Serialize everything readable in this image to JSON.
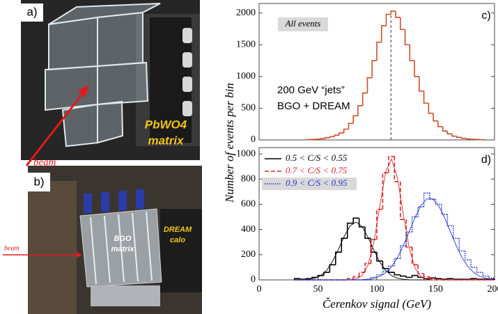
{
  "photos": {
    "a": {
      "label": "a)",
      "caption": [
        "PbWO4",
        "matrix"
      ],
      "beam": "beam"
    },
    "b": {
      "label": "b)",
      "beam": "beam",
      "bgo": [
        "BGO",
        "matrix"
      ],
      "dream": [
        "DREAM",
        "calo"
      ]
    }
  },
  "chart_data": [
    {
      "type": "histogram",
      "panel_label": "c)",
      "annotations": [
        "All events",
        "200 GeV “jets”",
        "BGO + DREAM"
      ],
      "bins": [
        40,
        44,
        48,
        52,
        56,
        60,
        64,
        68,
        72,
        76,
        80,
        84,
        88,
        92,
        96,
        100,
        104,
        108,
        112,
        116,
        120,
        124,
        128,
        132,
        136,
        140,
        144,
        148,
        152,
        156,
        160,
        164,
        168,
        172,
        176,
        180,
        184,
        188,
        192
      ],
      "values": [
        5,
        8,
        12,
        20,
        35,
        50,
        75,
        110,
        170,
        260,
        380,
        540,
        740,
        980,
        1250,
        1540,
        1800,
        1980,
        2030,
        1930,
        1740,
        1500,
        1250,
        1000,
        770,
        580,
        420,
        300,
        210,
        140,
        95,
        60,
        40,
        25,
        15,
        10,
        6,
        4
      ],
      "color": "#c8502a",
      "mean_line": 112,
      "xlim": [
        0,
        200
      ],
      "ylim": [
        0,
        2150
      ],
      "yticks": [
        0,
        500,
        1000,
        1500,
        2000
      ]
    },
    {
      "type": "histogram",
      "panel_label": "d)",
      "ylabel": "Number of events per bin",
      "xlabel": "Čerenkov signal (GeV)",
      "legend": "upper left",
      "bins": [
        30,
        35,
        40,
        45,
        50,
        55,
        60,
        65,
        70,
        75,
        80,
        85,
        90,
        95,
        100,
        105,
        110,
        115,
        120,
        125,
        130,
        135,
        140,
        145,
        150,
        155,
        160,
        165,
        170,
        175,
        180,
        185,
        190,
        195,
        200
      ],
      "series": [
        {
          "name": "0.5 < C/S < 0.55",
          "color": "#000000",
          "style": "solid",
          "values": [
            10,
            5,
            10,
            20,
            35,
            60,
            120,
            220,
            330,
            450,
            490,
            420,
            330,
            220,
            150,
            90,
            60,
            40,
            30,
            20,
            35,
            20,
            10,
            15,
            10,
            5,
            10,
            5,
            5,
            5,
            10,
            5,
            5,
            5
          ],
          "fit": [
            0,
            1,
            5,
            14,
            35,
            77,
            149,
            245,
            350,
            431,
            459,
            423,
            339,
            236,
            143,
            75,
            34,
            14,
            5,
            1,
            0,
            0,
            0,
            0,
            0,
            0,
            0,
            0,
            0,
            0,
            0,
            0,
            0,
            0
          ]
        },
        {
          "name": "0.7 < C/S < 0.75",
          "color": "#d62728",
          "style": "dashed",
          "values": [
            0,
            0,
            0,
            0,
            0,
            0,
            0,
            0,
            0,
            10,
            25,
            60,
            130,
            320,
            560,
            850,
            980,
            780,
            480,
            260,
            120,
            50,
            25,
            10,
            0,
            0,
            0,
            0,
            0,
            0,
            0,
            0,
            0,
            0
          ],
          "fit": [
            0,
            0,
            0,
            0,
            0,
            0,
            0,
            0,
            0,
            1,
            8,
            34,
            117,
            298,
            582,
            858,
            959,
            811,
            521,
            253,
            93,
            26,
            6,
            1,
            0,
            0,
            0,
            0,
            0,
            0,
            0,
            0,
            0,
            0
          ]
        },
        {
          "name": "0.9 < C/S < 0.95",
          "color": "#2233cc",
          "style": "dotted",
          "values": [
            0,
            0,
            0,
            0,
            0,
            0,
            0,
            0,
            0,
            0,
            0,
            0,
            0,
            20,
            40,
            70,
            110,
            170,
            270,
            380,
            500,
            580,
            690,
            640,
            600,
            520,
            430,
            330,
            230,
            160,
            100,
            60,
            30,
            15
          ],
          "fit": [
            0,
            0,
            0,
            0,
            0,
            0,
            0,
            0,
            0,
            0,
            0,
            2,
            6,
            13,
            29,
            57,
            104,
            175,
            271,
            383,
            496,
            590,
            643,
            643,
            590,
            496,
            383,
            271,
            175,
            104,
            57,
            29,
            13,
            6
          ]
        }
      ],
      "xlim": [
        0,
        200
      ],
      "ylim": [
        0,
        1050
      ],
      "xticks": [
        0,
        50,
        100,
        150,
        200
      ],
      "yticks": [
        0,
        200,
        400,
        600,
        800,
        1000
      ]
    }
  ]
}
